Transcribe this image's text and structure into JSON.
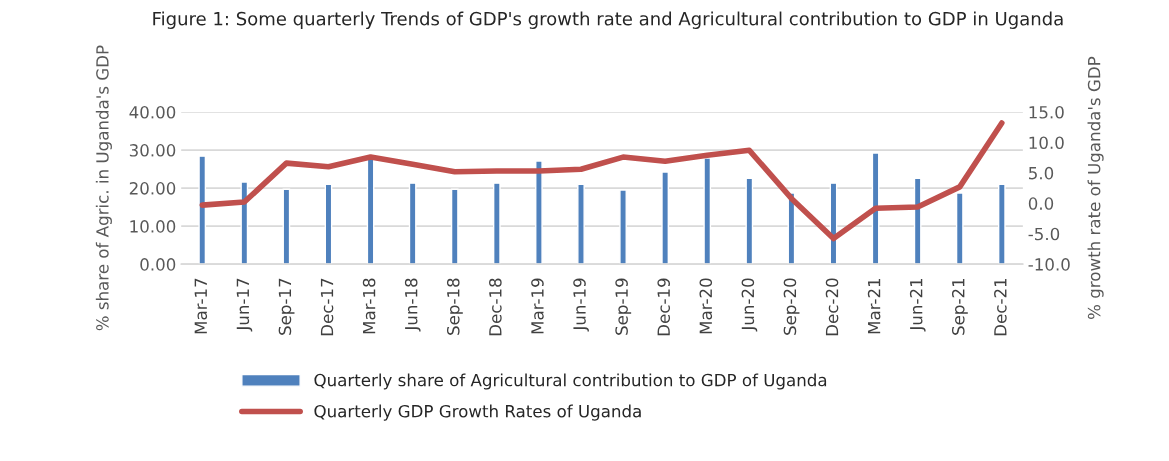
{
  "chart_data": {
    "type": "bar",
    "title": "Figure 1: Some quarterly Trends of GDP's growth rate and Agricultural contribution to GDP in Uganda",
    "ylabel": "% share of Agric. in Uganda's GDP",
    "y2label": "% growth rate of Uganda's GDP",
    "categories": [
      "Mar-17",
      "Jun-17",
      "Sep-17",
      "Dec-17",
      "Mar-18",
      "Jun-18",
      "Sep-18",
      "Dec-18",
      "Mar-19",
      "Jun-19",
      "Sep-19",
      "Dec-19",
      "Mar-20",
      "Jun-20",
      "Sep-20",
      "Dec-20",
      "Mar-21",
      "Jun-21",
      "Sep-21",
      "Dec-21"
    ],
    "series": [
      {
        "name": "Quarterly share of Agricultural contribution to GDP of Uganda",
        "color": "#4f81bd",
        "values": [
          28.4,
          21.6,
          19.7,
          21.0,
          27.9,
          21.3,
          19.7,
          21.3,
          27.1,
          21.0,
          19.5,
          24.2,
          27.9,
          22.6,
          18.7,
          21.3,
          29.2,
          22.6,
          18.7,
          21.0
        ]
      },
      {
        "name": "Quarterly GDP Growth Rates of Uganda",
        "type": "line",
        "axis": "y2",
        "color": "#c0504d",
        "values": [
          -0.3,
          0.2,
          6.6,
          6.0,
          7.6,
          6.4,
          5.2,
          5.3,
          5.3,
          5.6,
          7.6,
          6.9,
          7.9,
          8.7,
          0.8,
          -5.8,
          -0.8,
          -0.6,
          2.7,
          13.2
        ]
      }
    ],
    "ylim": [
      0,
      40
    ],
    "yticks": [
      {
        "value": 0,
        "label": "0.00"
      },
      {
        "value": 10,
        "label": "10.00"
      },
      {
        "value": 20,
        "label": "20.00"
      },
      {
        "value": 30,
        "label": "30.00"
      },
      {
        "value": 40,
        "label": "40.00"
      }
    ],
    "y2lim": [
      -10,
      15
    ],
    "y2ticks": [
      {
        "value": -10,
        "label": "-10.0"
      },
      {
        "value": -5,
        "label": "-5.0"
      },
      {
        "value": 0,
        "label": "0.0"
      },
      {
        "value": 5,
        "label": "5.0"
      },
      {
        "value": 10,
        "label": "10.0"
      },
      {
        "value": 15,
        "label": "15.0"
      }
    ],
    "grid": "y",
    "legend": "bottom",
    "marker": "none",
    "line_style": "solid"
  }
}
